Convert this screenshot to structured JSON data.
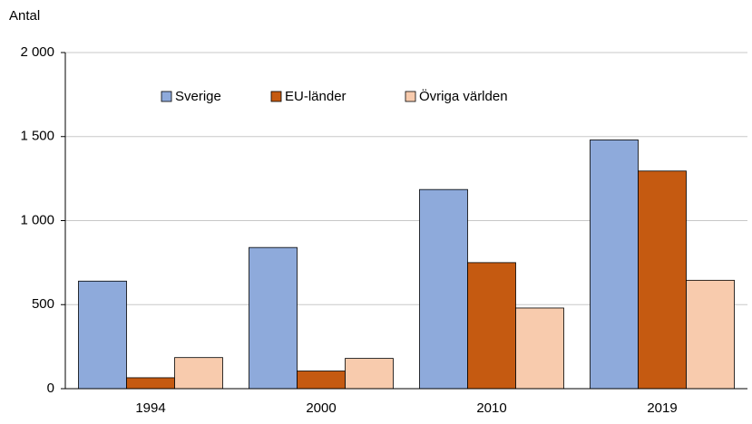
{
  "chart_data": {
    "type": "bar",
    "y_label": "Antal",
    "categories": [
      "1994",
      "2000",
      "2010",
      "2019"
    ],
    "series": [
      {
        "name": "Sverige",
        "color": "#8eaadb",
        "values": [
          640,
          840,
          1185,
          1480
        ]
      },
      {
        "name": "EU-länder",
        "color": "#c55a11",
        "values": [
          65,
          105,
          750,
          1295
        ]
      },
      {
        "name": "Övriga världen",
        "color": "#f8cbad",
        "values": [
          185,
          180,
          480,
          645
        ]
      }
    ],
    "ylim": [
      0,
      2000
    ],
    "yticks": [
      0,
      500,
      {
        "value": 1000,
        "label": "1 000"
      },
      {
        "value": 1500,
        "label": "1 500"
      },
      {
        "value": 2000,
        "label": "2 000"
      }
    ],
    "grid": true,
    "legend": "top"
  }
}
